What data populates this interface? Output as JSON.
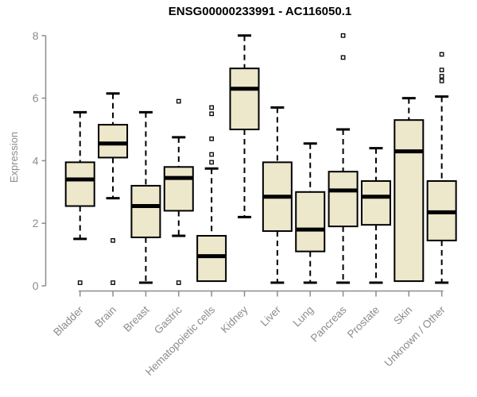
{
  "chart_data": {
    "type": "boxplot",
    "title": "ENSG00000233991 - AC116050.1",
    "ylabel": "Expression",
    "xlabel": "",
    "ylim": [
      0,
      8
    ],
    "yticks": [
      0,
      2,
      4,
      6,
      8
    ],
    "grid": false,
    "legend": "none",
    "box_fill": "#EDE7CB",
    "box_stroke": "#000000",
    "median_color": "#000000",
    "axis_color": "#8C8C8C",
    "categories": [
      "Bladder",
      "Brain",
      "Breast",
      "Gastric",
      "Hematopoietic cells",
      "Kidney",
      "Liver",
      "Lung",
      "Pancreas",
      "Prostate",
      "Skin",
      "Unknown / Other"
    ],
    "boxes": [
      {
        "category": "Bladder",
        "whisker_low": 1.5,
        "q1": 2.55,
        "median": 3.4,
        "q3": 3.95,
        "whisker_high": 5.55,
        "outliers": [
          0.1
        ]
      },
      {
        "category": "Brain",
        "whisker_low": 2.8,
        "q1": 4.1,
        "median": 4.55,
        "q3": 5.15,
        "whisker_high": 6.15,
        "outliers": [
          1.45,
          0.1
        ]
      },
      {
        "category": "Breast",
        "whisker_low": 0.1,
        "q1": 1.55,
        "median": 2.55,
        "q3": 3.2,
        "whisker_high": 5.55,
        "outliers": []
      },
      {
        "category": "Gastric",
        "whisker_low": 1.6,
        "q1": 2.4,
        "median": 3.45,
        "q3": 3.8,
        "whisker_high": 4.75,
        "outliers": [
          5.9,
          0.1
        ]
      },
      {
        "category": "Hematopoietic cells",
        "whisker_low": 0.15,
        "q1": 0.15,
        "median": 0.95,
        "q3": 1.6,
        "whisker_high": 3.75,
        "outliers": [
          5.7,
          5.5,
          4.7,
          4.2,
          3.95
        ]
      },
      {
        "category": "Kidney",
        "whisker_low": 2.2,
        "q1": 5.0,
        "median": 6.3,
        "q3": 6.95,
        "whisker_high": 8.0,
        "outliers": []
      },
      {
        "category": "Liver",
        "whisker_low": 0.1,
        "q1": 1.75,
        "median": 2.85,
        "q3": 3.95,
        "whisker_high": 5.7,
        "outliers": []
      },
      {
        "category": "Lung",
        "whisker_low": 0.1,
        "q1": 1.1,
        "median": 1.8,
        "q3": 3.0,
        "whisker_high": 4.55,
        "outliers": []
      },
      {
        "category": "Pancreas",
        "whisker_low": 0.1,
        "q1": 1.9,
        "median": 3.05,
        "q3": 3.65,
        "whisker_high": 5.0,
        "outliers": [
          8.0,
          7.3
        ]
      },
      {
        "category": "Prostate",
        "whisker_low": 0.1,
        "q1": 1.95,
        "median": 2.85,
        "q3": 3.35,
        "whisker_high": 4.4,
        "outliers": []
      },
      {
        "category": "Skin",
        "whisker_low": 0.15,
        "q1": 0.15,
        "median": 4.3,
        "q3": 5.3,
        "whisker_high": 6.0,
        "outliers": []
      },
      {
        "category": "Unknown / Other",
        "whisker_low": 0.1,
        "q1": 1.45,
        "median": 2.35,
        "q3": 3.35,
        "whisker_high": 6.05,
        "outliers": [
          7.4,
          6.9,
          6.7,
          6.55
        ]
      }
    ]
  }
}
